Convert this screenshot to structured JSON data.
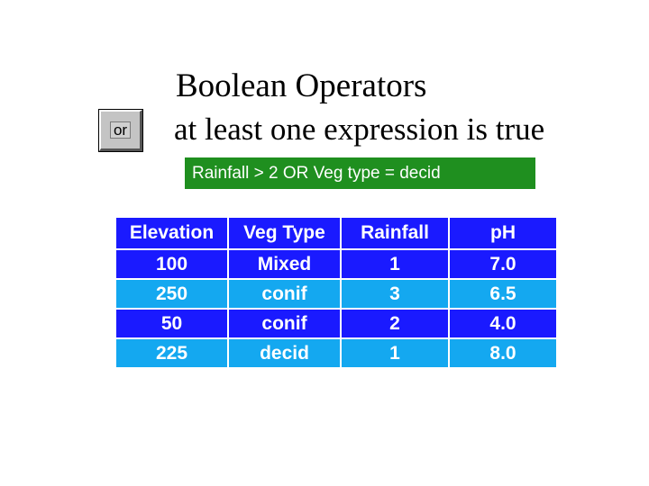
{
  "slide": {
    "title": "Boolean Operators",
    "subtitle": "at least one expression is true",
    "operator_button_label": "or",
    "expression": "Rainfall > 2 OR Veg type = decid"
  },
  "table": {
    "headers": [
      "Elevation",
      "Veg Type",
      "Rainfall",
      "pH"
    ],
    "rows": [
      [
        "100",
        "Mixed",
        "1",
        "7.0"
      ],
      [
        "250",
        "conif",
        "3",
        "6.5"
      ],
      [
        "50",
        "conif",
        "2",
        "4.0"
      ],
      [
        "225",
        "decid",
        "1",
        "8.0"
      ]
    ]
  },
  "colors": {
    "header_row": "#1a1aff",
    "dark_row": "#1a1aff",
    "light_row": "#14a8f0",
    "expression_bg": "#1f8f1f"
  }
}
